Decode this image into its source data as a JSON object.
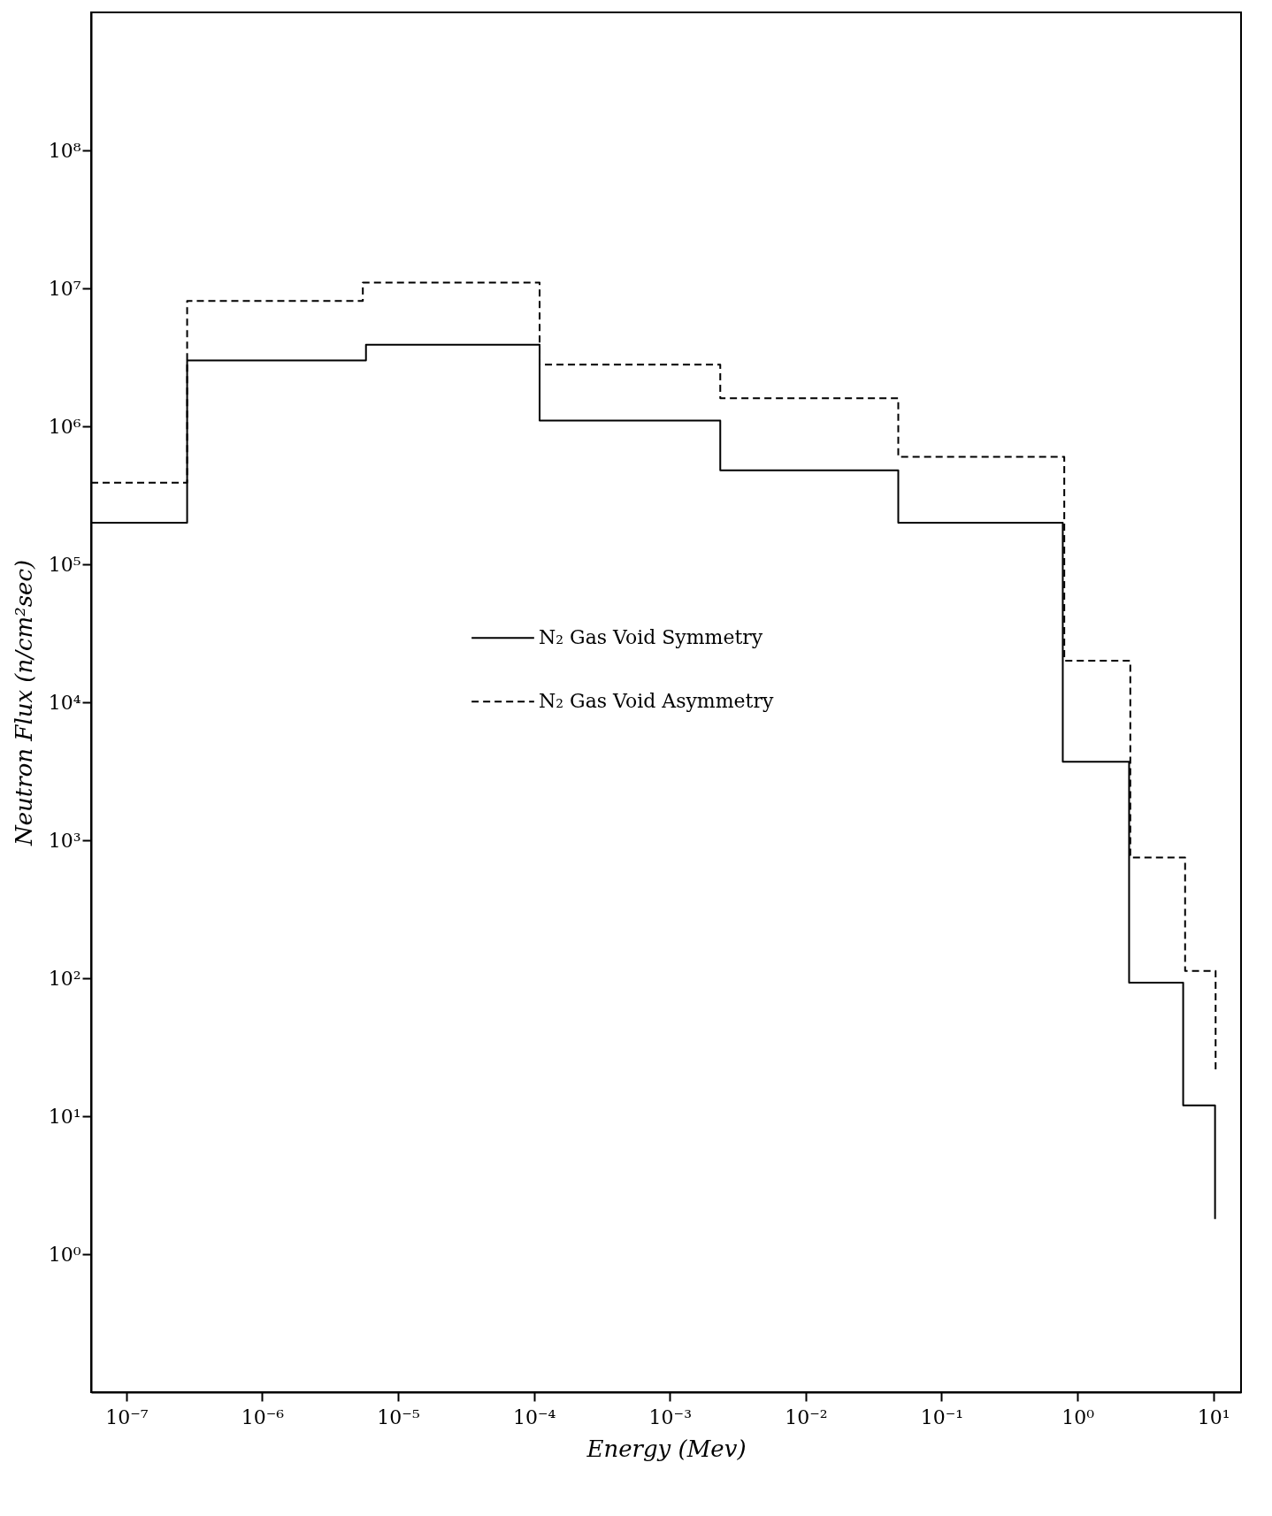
{
  "chart_data": {
    "type": "step",
    "xlabel": "Energy (Mev)",
    "ylabel": "Neutron Flux (n/cm²sec)",
    "log": "xy",
    "legend": "center",
    "xlim": [
      5.5e-08,
      16
    ],
    "ylim": [
      0.1,
      1000000000.0
    ],
    "xticks": [
      {
        "value": 1e-07,
        "label": "10⁻⁷"
      },
      {
        "value": 1e-06,
        "label": "10⁻⁶"
      },
      {
        "value": 1e-05,
        "label": "10⁻⁵"
      },
      {
        "value": 0.0001,
        "label": "10⁻⁴"
      },
      {
        "value": 0.001,
        "label": "10⁻³"
      },
      {
        "value": 0.01,
        "label": "10⁻²"
      },
      {
        "value": 0.1,
        "label": "10⁻¹"
      },
      {
        "value": 1,
        "label": "10⁰"
      },
      {
        "value": 10,
        "label": "10¹"
      }
    ],
    "yticks": [
      {
        "value": 1,
        "label": "10⁰"
      },
      {
        "value": 10,
        "label": "10¹"
      },
      {
        "value": 100,
        "label": "10²"
      },
      {
        "value": 1000,
        "label": "10³"
      },
      {
        "value": 10000,
        "label": "10⁴"
      },
      {
        "value": 100000,
        "label": "10⁵"
      },
      {
        "value": 1000000,
        "label": "10⁶"
      },
      {
        "value": 10000000,
        "label": "10⁷"
      },
      {
        "value": 100000000,
        "label": "10⁸"
      }
    ],
    "series": [
      {
        "name": "N₂ Gas Void Symmetry",
        "color": "#000000",
        "line_style": "solid",
        "x": [
          5.5e-08,
          2.8e-07,
          5.8e-06,
          0.00011,
          0.00235,
          0.048,
          0.78,
          2.4,
          6,
          10.3
        ],
        "values": [
          200000,
          3000000,
          3900000,
          1100000,
          480000,
          200000,
          3700,
          93,
          12,
          1.8
        ]
      },
      {
        "name": "N₂ Gas Void Asymmetry",
        "color": "#000000",
        "line_style": "dashed",
        "x": [
          5.5e-08,
          2.8e-07,
          5.5e-06,
          0.00011,
          0.00235,
          0.048,
          0.8,
          2.45,
          6.2,
          10.4
        ],
        "values": [
          390000,
          8100000,
          11000000,
          2800000,
          1600000,
          600000,
          20000,
          750,
          113,
          21
        ]
      }
    ]
  }
}
